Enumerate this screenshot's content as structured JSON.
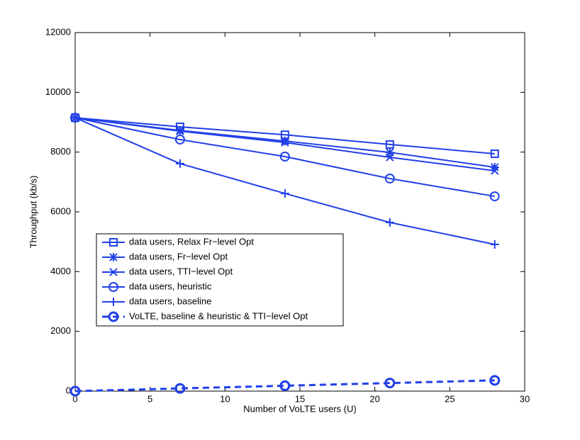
{
  "chart_data": {
    "type": "line",
    "xlabel": "Number of VoLTE users (U)",
    "ylabel": "Throughput (kb/s)",
    "x": [
      0,
      7,
      14,
      21,
      28
    ],
    "xlim": [
      0,
      30
    ],
    "xticks": [
      0,
      5,
      10,
      15,
      20,
      25,
      30
    ],
    "ylim": [
      0,
      12000
    ],
    "yticks": [
      0,
      2000,
      4000,
      6000,
      8000,
      10000,
      12000
    ],
    "grid": false,
    "series": [
      {
        "name": "data users, Relax Fr−level Opt",
        "color": "#2140e8",
        "marker": "square",
        "dash": false,
        "values": [
          9150,
          8845,
          8580,
          8255,
          7945
        ]
      },
      {
        "name": "data users, Fr−level Opt",
        "color": "#2140e8",
        "marker": "star",
        "dash": false,
        "values": [
          9150,
          8725,
          8370,
          7990,
          7495
        ]
      },
      {
        "name": "data users, TTI−level Opt",
        "color": "#2140e8",
        "marker": "x",
        "dash": false,
        "values": [
          9150,
          8700,
          8320,
          7825,
          7375
        ]
      },
      {
        "name": "data users, heuristic",
        "color": "#2140e8",
        "marker": "circle",
        "dash": false,
        "values": [
          9150,
          8420,
          7850,
          7115,
          6520
        ]
      },
      {
        "name": "data users, baseline",
        "color": "#2140e8",
        "marker": "plus",
        "dash": false,
        "values": [
          9150,
          7615,
          6615,
          5645,
          4910
        ]
      },
      {
        "name": "VoLTE, baseline & heuristic & TTI−level Opt",
        "color": "#2140e8",
        "marker": "circle",
        "dash": true,
        "values": [
          0,
          90,
          180,
          270,
          360
        ]
      }
    ]
  }
}
